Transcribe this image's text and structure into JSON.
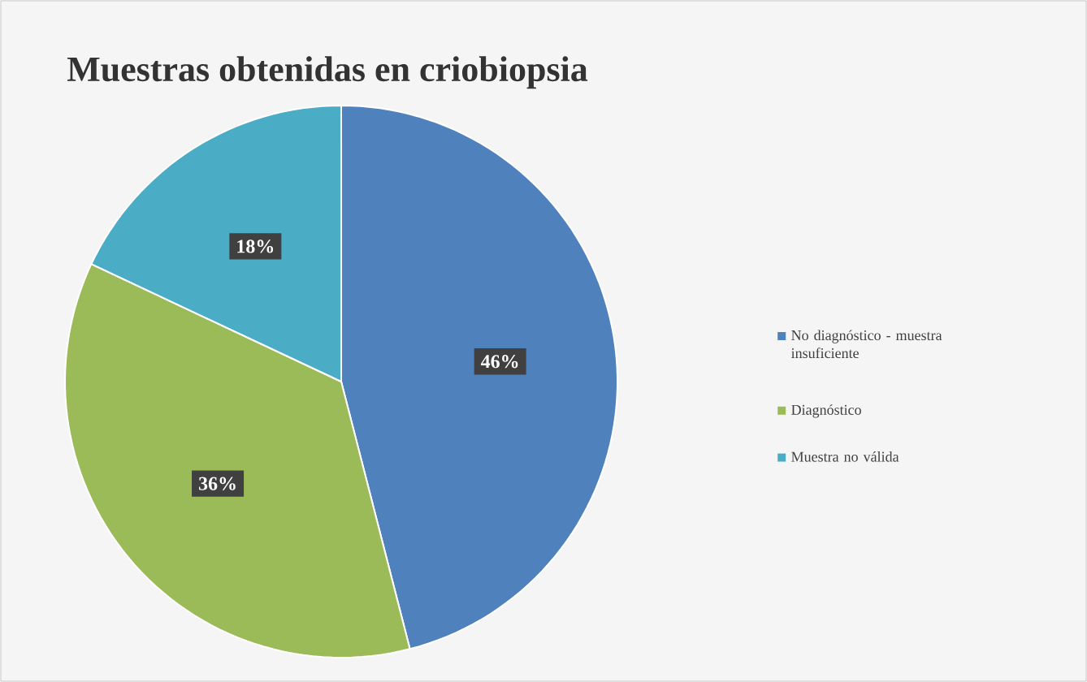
{
  "chart_data": {
    "type": "pie",
    "title": "Muestras obtenidas en criobiopsia",
    "categories": [
      "No diagnóstico - muestra insuficiente",
      "Diagnóstico",
      "Muestra no válida"
    ],
    "values": [
      46,
      36,
      18
    ],
    "colors": [
      "#4f81bd",
      "#9bbb59",
      "#4bacc6"
    ],
    "value_labels": [
      "46%",
      "36%",
      "18%"
    ],
    "legend": "right"
  }
}
